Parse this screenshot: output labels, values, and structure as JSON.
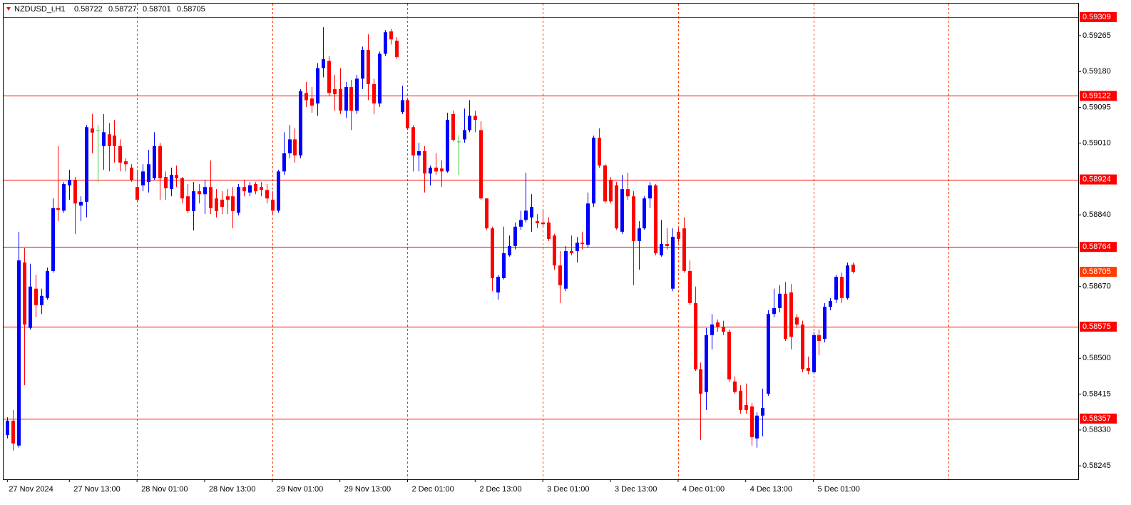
{
  "chart_data": {
    "type": "candlestick",
    "title": "NZDUSD_i,H1",
    "up_color": "#0000ff",
    "down_color": "#ff0000",
    "doji_color": "#33cc33",
    "level_color": "#ff0000",
    "price_label_color": "#ff3c00",
    "grid_color": "#ff3c00",
    "ylim": [
      0.58213,
      0.59341
    ],
    "yticks": [
      0.59265,
      {
        "value": 0.5918,
        "label": "0.59180"
      },
      0.59095,
      {
        "value": 0.5901,
        "label": "0.59010"
      },
      {
        "value": 0.5884,
        "label": "0.58840"
      },
      {
        "value": 0.5867,
        "label": "0.58670"
      },
      {
        "value": 0.585,
        "label": "0.58500"
      },
      0.58415,
      {
        "value": 0.5833,
        "label": "0.58330"
      },
      0.58245
    ],
    "levels": [
      0.59309,
      0.59122,
      0.58924,
      0.58764,
      0.58575,
      0.58357
    ],
    "xlim": [
      -0.8,
      190
    ],
    "xticks": [
      {
        "value": 0,
        "label": "27 Nov 2024"
      },
      {
        "value": 11,
        "label": "27 Nov 13:00"
      },
      {
        "value": 23,
        "label": "28 Nov 01:00"
      },
      {
        "value": 35,
        "label": "28 Nov 13:00"
      },
      {
        "value": 47,
        "label": "29 Nov 01:00"
      },
      {
        "value": 59,
        "label": "29 Nov 13:00"
      },
      {
        "value": 71,
        "label": "2 Dec 01:00"
      },
      {
        "value": 83,
        "label": "2 Dec 13:00"
      },
      {
        "value": 95,
        "label": "3 Dec 01:00"
      },
      {
        "value": 107,
        "label": "3 Dec 13:00"
      },
      {
        "value": 119,
        "label": "4 Dec 01:00"
      },
      {
        "value": 131,
        "label": "4 Dec 13:00"
      },
      {
        "value": 143,
        "label": "5 Dec 01:00"
      }
    ],
    "xgrid": [
      23,
      47,
      71,
      95,
      119,
      143,
      167
    ],
    "open": [
      0.58318,
      0.58352,
      0.58293,
      0.58727,
      0.58572,
      0.58665,
      0.58626,
      0.58643,
      0.58707,
      0.58856,
      0.5885,
      0.5891,
      0.58923,
      0.58862,
      0.58871,
      0.59045,
      0.5904,
      0.59003,
      0.59031,
      0.59028,
      0.59003,
      0.58967,
      0.58952,
      0.58906,
      0.5891,
      0.58918,
      0.58927,
      0.59003,
      0.5893,
      0.58901,
      0.58935,
      0.58927,
      0.58884,
      0.58849,
      0.58896,
      0.58889,
      0.58906,
      0.58879,
      0.58876,
      0.58884,
      0.58884,
      0.58845,
      0.58906,
      0.58893,
      0.58913,
      0.58906,
      0.58899,
      0.58876,
      0.5885,
      0.58943,
      0.58986,
      0.59019,
      0.58981,
      0.59129,
      0.59116,
      0.59104,
      0.59188,
      0.59205,
      0.59138,
      0.59138,
      0.59087,
      0.59143,
      0.59087,
      0.59163,
      0.59231,
      0.5915,
      0.59104,
      0.59222,
      0.59275,
      0.59253,
      0.59084,
      0.59112,
      0.59048,
      0.58981,
      0.58991,
      0.58938,
      0.58952,
      0.5895,
      0.58943,
      0.59079,
      0.59014,
      0.59019,
      0.59041,
      0.59075,
      0.59041,
      0.58879,
      0.58808,
      0.58656,
      0.5869,
      0.58744,
      0.58766,
      0.58812,
      0.58828,
      0.58834,
      0.58825,
      0.58822,
      0.58822,
      0.58791,
      0.5872,
      0.58665,
      0.58754,
      0.58754,
      0.58774,
      0.58769,
      0.58867,
      0.59023,
      0.58957,
      0.58923,
      0.5891,
      0.588,
      0.58901,
      0.58884,
      0.58778,
      0.58808,
      0.58879,
      0.5891,
      0.58744,
      0.58771,
      0.58665,
      0.588,
      0.58808,
      0.58707,
      0.58631,
      0.58474,
      0.5842,
      0.58555,
      0.58585,
      0.58575,
      0.58563,
      0.58445,
      0.58423,
      0.58389,
      0.58386,
      0.5831,
      0.58364,
      0.58416,
      0.58605,
      0.58619,
      0.58653,
      0.58656,
      0.58597,
      0.5858,
      0.58477,
      0.58467,
      0.58555,
      0.58546,
      0.58622,
      0.58639,
      0.58693,
      0.58643,
      0.58722
    ],
    "high": [
      0.5836,
      0.58377,
      0.588,
      0.58761,
      0.58724,
      0.58698,
      0.58665,
      0.58715,
      0.58879,
      0.59003,
      0.58918,
      0.58947,
      0.5893,
      0.58884,
      0.59053,
      0.59079,
      0.59053,
      0.59079,
      0.59058,
      0.59065,
      0.59019,
      0.58974,
      0.5896,
      0.58947,
      0.5896,
      0.58994,
      0.59036,
      0.59011,
      0.58943,
      0.58952,
      0.58957,
      0.5893,
      0.58913,
      0.58918,
      0.58913,
      0.58923,
      0.58969,
      0.58901,
      0.58896,
      0.58901,
      0.58906,
      0.58913,
      0.58923,
      0.58918,
      0.58918,
      0.58918,
      0.58913,
      0.58896,
      0.58947,
      0.59036,
      0.59053,
      0.59045,
      0.59138,
      0.59155,
      0.59143,
      0.592,
      0.59285,
      0.59217,
      0.59172,
      0.59188,
      0.59155,
      0.5916,
      0.59172,
      0.59239,
      0.59268,
      0.59163,
      0.59227,
      0.59278,
      0.59281,
      0.59261,
      0.59146,
      0.59116,
      0.59053,
      0.59011,
      0.59003,
      0.58957,
      0.58986,
      0.58969,
      0.59082,
      0.59087,
      0.59028,
      0.59092,
      0.59112,
      0.59087,
      0.59062,
      0.58879,
      0.58812,
      0.58698,
      0.58812,
      0.58791,
      0.58822,
      0.5885,
      0.5894,
      0.58889,
      0.58842,
      0.5885,
      0.58834,
      0.58795,
      0.58754,
      0.58766,
      0.58791,
      0.58788,
      0.588,
      0.58893,
      0.59028,
      0.59045,
      0.5896,
      0.5893,
      0.58918,
      0.58935,
      0.5894,
      0.58896,
      0.58825,
      0.58884,
      0.58918,
      0.58913,
      0.58828,
      0.58808,
      0.58808,
      0.58808,
      0.58834,
      0.58732,
      0.5867,
      0.5849,
      0.58572,
      0.58605,
      0.58592,
      0.58589,
      0.58568,
      0.58457,
      0.58436,
      0.5844,
      0.58394,
      0.58372,
      0.58428,
      0.58614,
      0.58665,
      0.58673,
      0.58681,
      0.58676,
      0.58605,
      0.58589,
      0.58504,
      0.58563,
      0.58568,
      0.58631,
      0.58643,
      0.58698,
      0.58703,
      0.58727,
      0.58727
    ],
    "low": [
      0.5831,
      0.58281,
      0.58288,
      0.58436,
      0.58568,
      0.58597,
      0.58605,
      0.58639,
      0.58703,
      0.58825,
      0.58845,
      0.58876,
      0.58795,
      0.58825,
      0.58834,
      0.58986,
      0.58918,
      0.58947,
      0.58943,
      0.58964,
      0.58943,
      0.58943,
      0.58918,
      0.58872,
      0.58896,
      0.58893,
      0.58923,
      0.58876,
      0.58876,
      0.58884,
      0.58906,
      0.58867,
      0.58845,
      0.58803,
      0.58867,
      0.58842,
      0.58842,
      0.58834,
      0.58842,
      0.58842,
      0.58808,
      0.58839,
      0.58884,
      0.58884,
      0.58889,
      0.58884,
      0.58867,
      0.58839,
      0.58845,
      0.58935,
      0.58974,
      0.58964,
      0.58974,
      0.59096,
      0.59082,
      0.59075,
      0.59166,
      0.59121,
      0.59087,
      0.59079,
      0.5907,
      0.59041,
      0.59079,
      0.59138,
      0.59112,
      0.59079,
      0.59096,
      0.59217,
      0.59244,
      0.5921,
      0.59079,
      0.59041,
      0.58943,
      0.58943,
      0.58893,
      0.5891,
      0.58935,
      0.58906,
      0.5894,
      0.59014,
      0.58935,
      0.59011,
      0.59036,
      0.59036,
      0.58876,
      0.58805,
      0.58659,
      0.58639,
      0.58687,
      0.58741,
      0.58758,
      0.58805,
      0.58822,
      0.588,
      0.58808,
      0.58812,
      0.58778,
      0.5871,
      0.58631,
      0.58659,
      0.58744,
      0.58727,
      0.58758,
      0.58761,
      0.58859,
      0.58952,
      0.58867,
      0.58867,
      0.58805,
      0.58795,
      0.58876,
      0.58673,
      0.5871,
      0.58805,
      0.58856,
      0.58744,
      0.58741,
      0.58758,
      0.58659,
      0.58774,
      0.58703,
      0.58626,
      0.5847,
      0.58306,
      0.58377,
      0.58521,
      0.58563,
      0.58555,
      0.58445,
      0.58416,
      0.58369,
      0.58369,
      0.58293,
      0.58288,
      0.58315,
      0.58411,
      0.58597,
      0.58609,
      0.58541,
      0.58521,
      0.58572,
      0.58467,
      0.58462,
      0.58463,
      0.58507,
      0.58538,
      0.58614,
      0.58631,
      0.58631,
      0.58639,
      0.58701
    ],
    "close": [
      0.58352,
      0.58298,
      0.58732,
      0.5858,
      0.5867,
      0.58626,
      0.58648,
      0.58707,
      0.58856,
      0.58852,
      0.58913,
      0.58923,
      0.58867,
      0.58871,
      0.59048,
      0.59035,
      0.5904,
      0.59036,
      0.59003,
      0.59003,
      0.58964,
      0.5896,
      0.58923,
      0.58876,
      0.58943,
      0.5896,
      0.59003,
      0.58927,
      0.58903,
      0.58935,
      0.58927,
      0.58879,
      0.58849,
      0.58896,
      0.58889,
      0.58906,
      0.58856,
      0.58849,
      0.58859,
      0.58876,
      0.58849,
      0.58906,
      0.58896,
      0.5891,
      0.58896,
      0.58899,
      0.58879,
      0.5885,
      0.58943,
      0.58986,
      0.59019,
      0.58981,
      0.59133,
      0.59112,
      0.59099,
      0.59188,
      0.59209,
      0.59129,
      0.59126,
      0.59087,
      0.59143,
      0.59087,
      0.59163,
      0.59231,
      0.5915,
      0.59104,
      0.59222,
      0.59273,
      0.59256,
      0.59214,
      0.59112,
      0.59045,
      0.58981,
      0.58991,
      0.58938,
      0.58952,
      0.58943,
      0.58943,
      0.59065,
      0.59018,
      0.59014,
      0.59041,
      0.59075,
      0.59065,
      0.58879,
      0.58808,
      0.5869,
      0.58693,
      0.58749,
      0.58766,
      0.58812,
      0.58828,
      0.5885,
      0.58859,
      0.5882,
      0.58818,
      0.58783,
      0.5872,
      0.58673,
      0.58754,
      0.58749,
      0.58774,
      0.58771,
      0.58867,
      0.59023,
      0.58957,
      0.58872,
      0.58872,
      0.58808,
      0.58901,
      0.58884,
      0.58778,
      0.58808,
      0.58879,
      0.5891,
      0.58749,
      0.58771,
      0.58766,
      0.58788,
      0.58783,
      0.58707,
      0.58631,
      0.58474,
      0.58416,
      0.58555,
      0.5858,
      0.58575,
      0.58563,
      0.5845,
      0.5842,
      0.58377,
      0.58377,
      0.58313,
      0.58364,
      0.58382,
      0.58605,
      0.58619,
      0.58653,
      0.58546,
      0.58551,
      0.5858,
      0.58474,
      0.5847,
      0.58555,
      0.58541,
      0.58622,
      0.58636,
      0.58693,
      0.58643,
      0.5872,
      0.58705
    ]
  }
}
